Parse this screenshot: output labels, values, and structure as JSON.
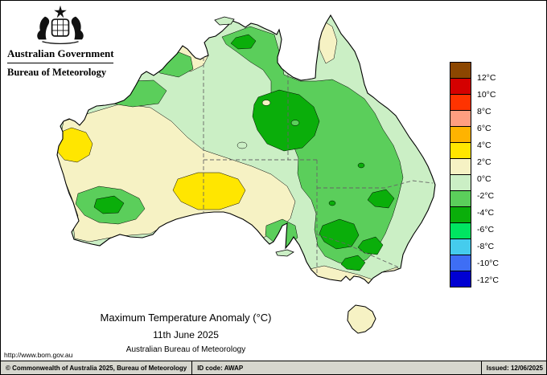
{
  "header": {
    "government": "Australian Government",
    "agency": "Bureau of Meteorology",
    "crest_icon": "australian-coat-of-arms"
  },
  "map": {
    "title": "Maximum Temperature Anomaly (°C)",
    "date": "11th June 2025",
    "source": "Australian Bureau of Meteorology"
  },
  "legend": {
    "unit": "°C",
    "labels": [
      "12°C",
      "10°C",
      "8°C",
      "6°C",
      "4°C",
      "2°C",
      "0°C",
      "-2°C",
      "-4°C",
      "-6°C",
      "-8°C",
      "-10°C",
      "-12°C"
    ],
    "colors": [
      "#8C4600",
      "#D40000",
      "#FF3300",
      "#FF9E80",
      "#FFB300",
      "#FFE600",
      "#F6F2C4",
      "#CBEFC5",
      "#5BCE5B",
      "#0AAE0A",
      "#00E561",
      "#45CCED",
      "#3E6EF5",
      "#0000D2"
    ]
  },
  "map_data": {
    "type": "filled-contour-map",
    "region": "Australia",
    "variable": "Maximum temperature anomaly",
    "unit": "°C",
    "anomaly_regions": [
      {
        "area": "West coast WA (Shark Bay / Carnarvon)",
        "anomaly_c": "+2 to +4"
      },
      {
        "area": "Central South Australia",
        "anomaly_c": "+2 to +4"
      },
      {
        "area": "Much of western and central WA, central Australia band, Cape York tip, southern Victoria coast, Tasmania",
        "anomaly_c": "0 to +2"
      },
      {
        "area": "Top End NT, Kimberley interior, inland southern WA, most of Queensland and inland NSW",
        "anomaly_c": "-2 to -4"
      },
      {
        "area": "Northwest Queensland interior, patches of central NSW and the Victoria border",
        "anomaly_c": "-4 to -6"
      },
      {
        "area": "Remaining coastal fringes and central deserts",
        "anomaly_c": "-2 to 0"
      }
    ]
  },
  "footer": {
    "url": "http://www.bom.gov.au",
    "copyright": "© Commonwealth of Australia 2025, Bureau of Meteorology",
    "id_code": "ID code: AWAP",
    "issued": "Issued: 12/06/2025"
  }
}
